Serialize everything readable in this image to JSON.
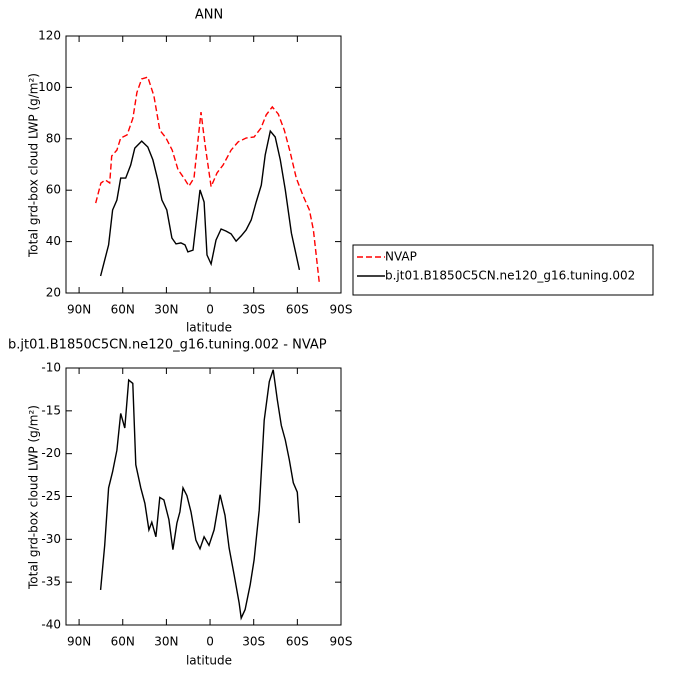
{
  "chart_data": [
    {
      "type": "line",
      "title": "ANN",
      "ylabel": "Total grd-box cloud LWP (g/m²)",
      "xlabel": "latitude",
      "xlim": [
        99,
        -90
      ],
      "ylim": [
        20,
        120
      ],
      "xticks": [
        {
          "value": 90,
          "label": "90N"
        },
        {
          "value": 60,
          "label": "60N"
        },
        {
          "value": 30,
          "label": "30N"
        },
        0,
        {
          "value": -30,
          "label": "30S"
        },
        {
          "value": -60,
          "label": "60S"
        },
        {
          "value": -90,
          "label": "90S"
        }
      ],
      "yticks": [
        20,
        40,
        60,
        80,
        100,
        120
      ],
      "legend": "right",
      "series": [
        {
          "name": "NVAP",
          "color": "#ff0000",
          "dashed": true,
          "x": [
            78.6,
            75,
            72,
            69,
            67.6,
            64,
            61.4,
            57,
            53,
            50.3,
            47,
            42.8,
            38.6,
            34.5,
            30.3,
            26,
            22,
            17.9,
            14.5,
            11,
            8.3,
            6.2,
            3.4,
            -0.7,
            -4.8,
            -9,
            -14.5,
            -19.3,
            -24.8,
            -30.3,
            -35,
            -38.6,
            -42.8,
            -46.9,
            -51,
            -55,
            -59.3,
            -64,
            -68.3,
            -71,
            -75
          ],
          "values": [
            55,
            62.8,
            64,
            62.8,
            73.3,
            75.6,
            80.3,
            81.5,
            88,
            98,
            103.3,
            104,
            96.7,
            83.4,
            80.3,
            75.6,
            68,
            64.7,
            61.6,
            64.7,
            79.5,
            90.4,
            77.6,
            61.4,
            66.7,
            69.8,
            75.6,
            78.8,
            80.3,
            80.7,
            84.2,
            89.3,
            92.4,
            89.6,
            83.4,
            74.9,
            64.7,
            57.7,
            52.3,
            44.5,
            24.3
          ]
        },
        {
          "name": "b.jt01.B1850C5CN.ne120_g16.tuning.002",
          "color": "#000000",
          "dashed": false,
          "x": [
            75.2,
            72.4,
            69.7,
            67,
            64,
            61.4,
            58,
            54.5,
            51.7,
            47,
            42.8,
            39.3,
            35.9,
            33.1,
            29.7,
            26.2,
            23.4,
            20,
            17.2,
            15.2,
            11.7,
            6.9,
            4.1,
            2.1,
            -0.7,
            -4.1,
            -7.6,
            -11,
            -14.5,
            -17.9,
            -21.4,
            -24.8,
            -28.3,
            -31.7,
            -35.2,
            -37.9,
            -41.4,
            -44.8,
            -48.3,
            -51.7,
            -55.9,
            -61.4
          ],
          "values": [
            26.6,
            32.8,
            38.7,
            52.3,
            56.2,
            64.7,
            64.7,
            69.8,
            76.4,
            79.1,
            76.8,
            71.8,
            64,
            56.2,
            52.3,
            41.4,
            39.1,
            39.5,
            38.7,
            36,
            36.7,
            60.1,
            55.4,
            34.8,
            31.3,
            40.6,
            44.9,
            44.1,
            43,
            40.2,
            42.2,
            44.5,
            48.4,
            55.4,
            62,
            73.7,
            83,
            80.7,
            71.8,
            60.1,
            43.3,
            29
          ]
        }
      ]
    },
    {
      "type": "line",
      "title": "b.jt01.B1850C5CN.ne120_g16.tuning.002 - NVAP",
      "ylabel": "Total grd-box cloud LWP (g/m²)",
      "xlabel": "latitude",
      "xlim": [
        99,
        -90
      ],
      "ylim": [
        -40,
        -10
      ],
      "xticks": [
        {
          "value": 90,
          "label": "90N"
        },
        {
          "value": 60,
          "label": "60N"
        },
        {
          "value": 30,
          "label": "30N"
        },
        0,
        {
          "value": -30,
          "label": "30S"
        },
        {
          "value": -60,
          "label": "60S"
        },
        {
          "value": -90,
          "label": "90S"
        }
      ],
      "yticks": [
        -40,
        -35,
        -30,
        -25,
        -20,
        -15,
        -10
      ],
      "color": "#000000",
      "x": [
        75.2,
        72.4,
        69.7,
        67,
        64,
        61.4,
        58.6,
        55.9,
        53.1,
        51,
        47.6,
        44.8,
        42,
        40,
        37.2,
        34.5,
        31.7,
        28.3,
        25.5,
        22.8,
        20.7,
        18.6,
        15.9,
        13.1,
        9.7,
        6.9,
        4.1,
        0.7,
        -2.8,
        -6.9,
        -10.3,
        -13.1,
        -16.6,
        -20,
        -21.4,
        -24.1,
        -27.6,
        -30.3,
        -33.8,
        -37.2,
        -40.7,
        -43.4,
        -46.2,
        -49,
        -51.7,
        -54.5,
        -57.2,
        -60,
        -61.4
      ],
      "values": [
        -35.9,
        -30.7,
        -24,
        -22.1,
        -19.6,
        -15.3,
        -17,
        -11.4,
        -11.8,
        -21.3,
        -24,
        -25.8,
        -28.9,
        -28,
        -29.7,
        -25.1,
        -25.4,
        -27.7,
        -31.2,
        -28.1,
        -26.8,
        -24,
        -24.9,
        -26.8,
        -30.1,
        -31.1,
        -29.7,
        -30.7,
        -28.9,
        -24.8,
        -27.2,
        -31,
        -34.2,
        -37.4,
        -39.2,
        -38.2,
        -35.3,
        -32.4,
        -26.6,
        -16.1,
        -11.6,
        -10.2,
        -13.7,
        -16.7,
        -18.4,
        -20.7,
        -23.4,
        -24.5,
        -28.1
      ]
    }
  ]
}
